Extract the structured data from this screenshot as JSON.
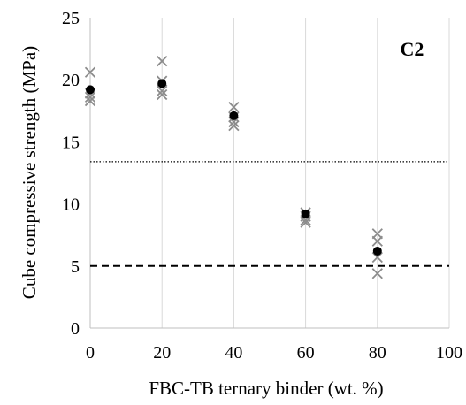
{
  "chart_data": {
    "type": "scatter",
    "panel_label": "C2",
    "xlabel": "FBC-TB  ternary binder (wt. %)",
    "ylabel": "Cube compressive strength (MPa)",
    "xlim": [
      0,
      100
    ],
    "ylim": [
      0,
      25
    ],
    "x_ticks": [
      0,
      20,
      40,
      60,
      80,
      100
    ],
    "y_ticks": [
      0,
      5,
      10,
      15,
      20,
      25
    ],
    "grid": "vertical",
    "reference_lines": [
      {
        "y": 13.4,
        "style": "dotted"
      },
      {
        "y": 5.0,
        "style": "dashed"
      }
    ],
    "series": [
      {
        "marker": "x",
        "color": "#8c8c8c",
        "points": [
          {
            "x": 0,
            "y": 20.6
          },
          {
            "x": 0,
            "y": 18.9
          },
          {
            "x": 0,
            "y": 18.6
          },
          {
            "x": 0,
            "y": 18.3
          },
          {
            "x": 20,
            "y": 21.5
          },
          {
            "x": 20,
            "y": 19.9
          },
          {
            "x": 20,
            "y": 19.1
          },
          {
            "x": 20,
            "y": 18.8
          },
          {
            "x": 40,
            "y": 17.8
          },
          {
            "x": 40,
            "y": 17.0
          },
          {
            "x": 40,
            "y": 16.6
          },
          {
            "x": 40,
            "y": 16.3
          },
          {
            "x": 60,
            "y": 9.3
          },
          {
            "x": 60,
            "y": 9.0
          },
          {
            "x": 60,
            "y": 8.7
          },
          {
            "x": 60,
            "y": 8.5
          },
          {
            "x": 80,
            "y": 7.6
          },
          {
            "x": 80,
            "y": 7.0
          },
          {
            "x": 80,
            "y": 5.7
          },
          {
            "x": 80,
            "y": 4.4
          }
        ]
      },
      {
        "marker": "circle",
        "color": "#000000",
        "points": [
          {
            "x": 0,
            "y": 19.2
          },
          {
            "x": 20,
            "y": 19.7
          },
          {
            "x": 40,
            "y": 17.1
          },
          {
            "x": 60,
            "y": 9.2
          },
          {
            "x": 80,
            "y": 6.2
          }
        ]
      }
    ]
  }
}
